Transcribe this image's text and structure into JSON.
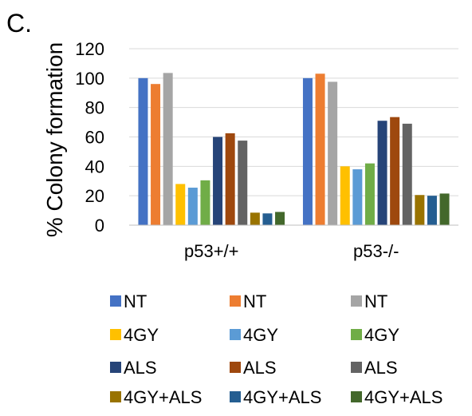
{
  "panel_label": "C.",
  "chart_data": {
    "type": "bar",
    "title": "",
    "xlabel": "",
    "ylabel": "% Colony formation",
    "ylim": [
      0,
      120
    ],
    "yticks": [
      0,
      20,
      40,
      60,
      80,
      100,
      120
    ],
    "grid": true,
    "legend_position": "bottom",
    "categories": [
      "p53+/+",
      "p53-/-"
    ],
    "series": [
      {
        "name": "NT",
        "color": "#4472C4",
        "values": [
          100,
          100
        ]
      },
      {
        "name": "NT",
        "color": "#ED7D31",
        "values": [
          96,
          103
        ]
      },
      {
        "name": "NT",
        "color": "#A5A5A5",
        "values": [
          103.5,
          97.5
        ]
      },
      {
        "name": "4GY",
        "color": "#FFC000",
        "values": [
          28,
          40
        ]
      },
      {
        "name": "4GY",
        "color": "#5B9BD5",
        "values": [
          25.5,
          38
        ]
      },
      {
        "name": "4GY",
        "color": "#70AD47",
        "values": [
          30.5,
          42
        ]
      },
      {
        "name": "ALS",
        "color": "#264478",
        "values": [
          60,
          71
        ]
      },
      {
        "name": "ALS",
        "color": "#9E480E",
        "values": [
          62.5,
          73.5
        ]
      },
      {
        "name": "ALS",
        "color": "#636363",
        "values": [
          57.5,
          69
        ]
      },
      {
        "name": "4GY+ALS",
        "color": "#997300",
        "values": [
          8.5,
          20.5
        ]
      },
      {
        "name": "4GY+ALS",
        "color": "#255E91",
        "values": [
          8,
          20
        ]
      },
      {
        "name": "4GY+ALS",
        "color": "#43682B",
        "values": [
          9,
          21.5
        ]
      }
    ]
  }
}
